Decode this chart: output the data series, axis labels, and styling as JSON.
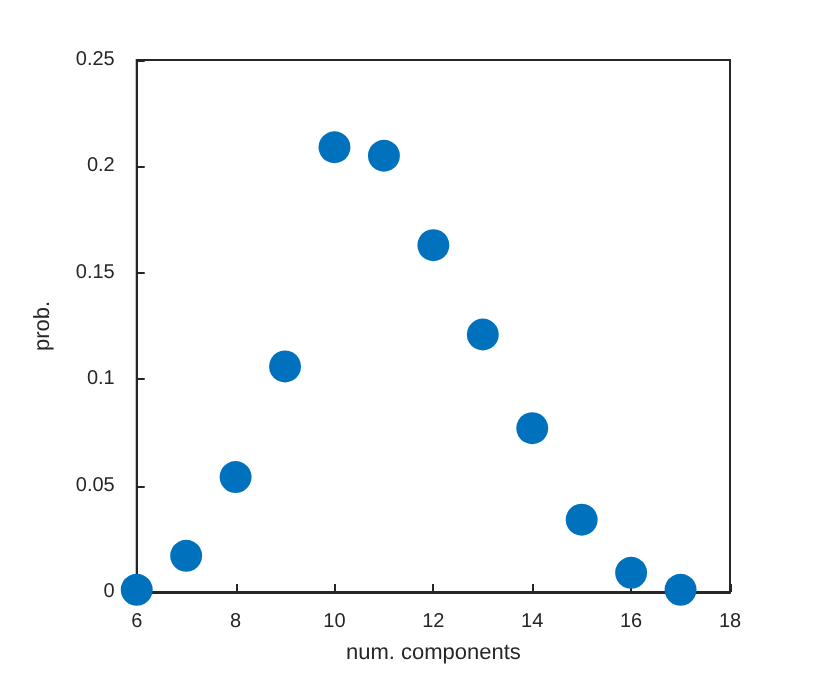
{
  "chart_data": {
    "type": "scatter",
    "xlabel": "num. components",
    "ylabel": "prob.",
    "x": [
      6,
      7,
      8,
      9,
      10,
      11,
      12,
      13,
      14,
      15,
      16,
      17
    ],
    "series": [
      {
        "color": "#0072bd",
        "values": [
          0.001,
          0.017,
          0.054,
          0.106,
          0.209,
          0.205,
          0.163,
          0.121,
          0.077,
          0.034,
          0.009,
          0.001
        ]
      }
    ],
    "xlim": [
      6,
      18
    ],
    "xticks": [
      6,
      8,
      10,
      12,
      14,
      16,
      18
    ],
    "ylim": [
      0,
      0.25
    ],
    "yticks": [
      0,
      0.05,
      0.1,
      0.15,
      0.2,
      0.25
    ],
    "grid": false,
    "marker": "circle"
  }
}
